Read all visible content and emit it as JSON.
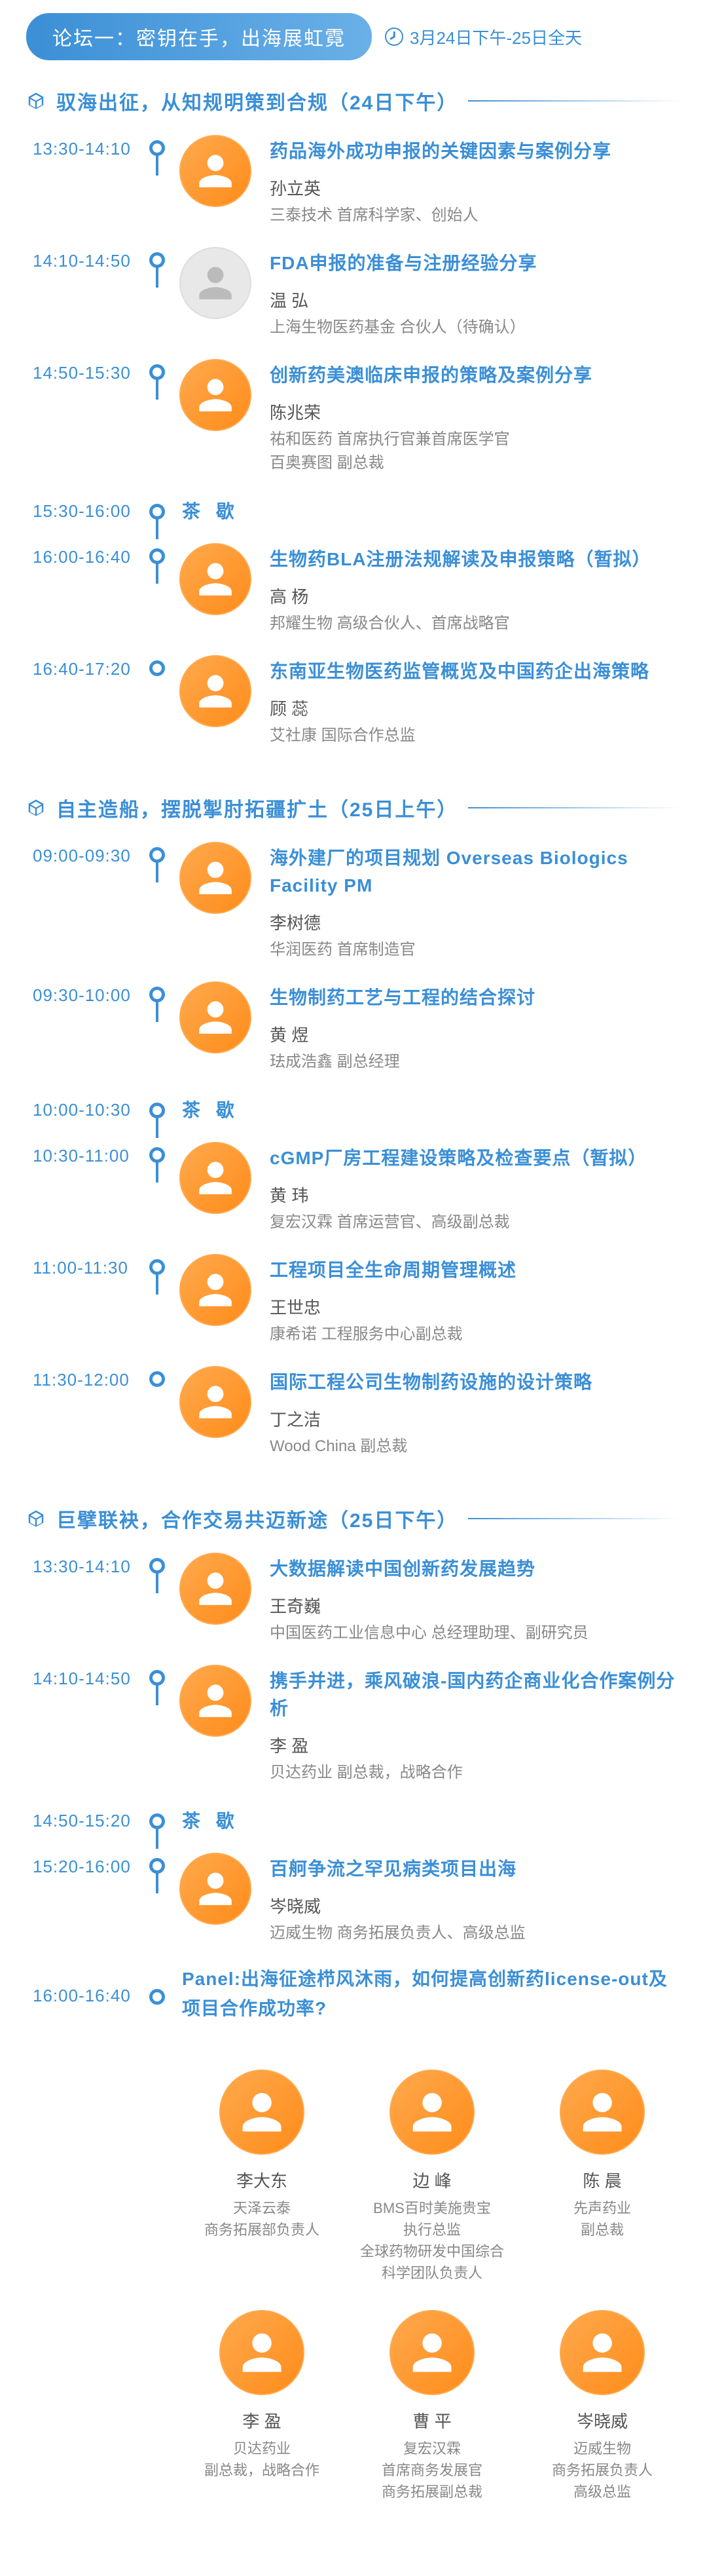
{
  "forum": {
    "title": "论坛一：密钥在手，出海展虹霓",
    "date": "3月24日下午-25日全天"
  },
  "sections": [
    {
      "title": "驭海出征，从知规明策到合规（24日下午）",
      "items": [
        {
          "time": "13:30-14:10",
          "topic": "药品海外成功申报的关键因素与案例分享",
          "name": "孙立英",
          "org": "三泰技术 首席科学家、创始人",
          "ph": false
        },
        {
          "time": "14:10-14:50",
          "topic": "FDA申报的准备与注册经验分享",
          "name": "温 弘",
          "org": "上海生物医药基金 合伙人（待确认）",
          "ph": true
        },
        {
          "time": "14:50-15:30",
          "topic": "创新药美澳临床申报的策略及案例分享",
          "name": "陈兆荣",
          "org": "祐和医药 首席执行官兼首席医学官\n百奥赛图 副总裁",
          "ph": false
        },
        {
          "time": "15:30-16:00",
          "break": "茶 歇"
        },
        {
          "time": "16:00-16:40",
          "topic": "生物药BLA注册法规解读及申报策略（暂拟）",
          "name": "高 杨",
          "org": "邦耀生物 高级合伙人、首席战略官",
          "ph": false
        },
        {
          "time": "16:40-17:20",
          "topic": "东南亚生物医药监管概览及中国药企出海策略",
          "name": "顾 蕊",
          "org": "艾社康 国际合作总监",
          "ph": false
        }
      ]
    },
    {
      "title": "自主造船，摆脱掣肘拓疆扩土（25日上午）",
      "items": [
        {
          "time": "09:00-09:30",
          "topic": "海外建厂的项目规划 Overseas Biologics Facility PM",
          "name": "李树德",
          "org": "华润医药 首席制造官",
          "ph": false
        },
        {
          "time": "09:30-10:00",
          "topic": "生物制药工艺与工程的结合探讨",
          "name": "黄 煜",
          "org": "珐成浩鑫 副总经理",
          "ph": false
        },
        {
          "time": "10:00-10:30",
          "break": "茶 歇"
        },
        {
          "time": "10:30-11:00",
          "topic": "cGMP厂房工程建设策略及检查要点（暂拟）",
          "name": "黄 玮",
          "org": "复宏汉霖 首席运营官、高级副总裁",
          "ph": false
        },
        {
          "time": "11:00-11:30",
          "topic": "工程项目全生命周期管理概述",
          "name": "王世忠",
          "org": "康希诺 工程服务中心副总裁",
          "ph": false
        },
        {
          "time": "11:30-12:00",
          "topic": "国际工程公司生物制药设施的设计策略",
          "name": "丁之洁",
          "org": "Wood China 副总裁",
          "ph": false
        }
      ]
    },
    {
      "title": "巨擘联袂，合作交易共迈新途（25日下午）",
      "items": [
        {
          "time": "13:30-14:10",
          "topic": "大数据解读中国创新药发展趋势",
          "name": "王奇巍",
          "org": "中国医药工业信息中心 总经理助理、副研究员",
          "ph": false
        },
        {
          "time": "14:10-14:50",
          "topic": "携手并进，乘风破浪-国内药企商业化合作案例分析",
          "name": "李 盈",
          "org": "贝达药业 副总裁，战略合作",
          "ph": false
        },
        {
          "time": "14:50-15:20",
          "break": "茶 歇"
        },
        {
          "time": "15:20-16:00",
          "topic": "百舸争流之罕见病类项目出海",
          "name": "岑晓威",
          "org": "迈威生物 商务拓展负责人、高级总监",
          "ph": false
        },
        {
          "time": "16:00-16:40",
          "panel": "Panel:出海征途栉风沐雨，如何提高创新药license-out及项目合作成功率?",
          "panelists": [
            {
              "name": "李大东",
              "org": "天泽云泰\n商务拓展部负责人"
            },
            {
              "name": "边 峰",
              "org": "BMS百时美施贵宝\n执行总监\n全球药物研发中国综合\n科学团队负责人"
            },
            {
              "name": "陈 晨",
              "org": "先声药业\n副总裁"
            },
            {
              "name": "李 盈",
              "org": "贝达药业\n副总裁，战略合作"
            },
            {
              "name": "曹 平",
              "org": "复宏汉霖\n首席商务发展官\n商务拓展副总裁"
            },
            {
              "name": "岑晓威",
              "org": "迈威生物\n商务拓展负责人\n高级总监"
            }
          ]
        }
      ]
    }
  ]
}
